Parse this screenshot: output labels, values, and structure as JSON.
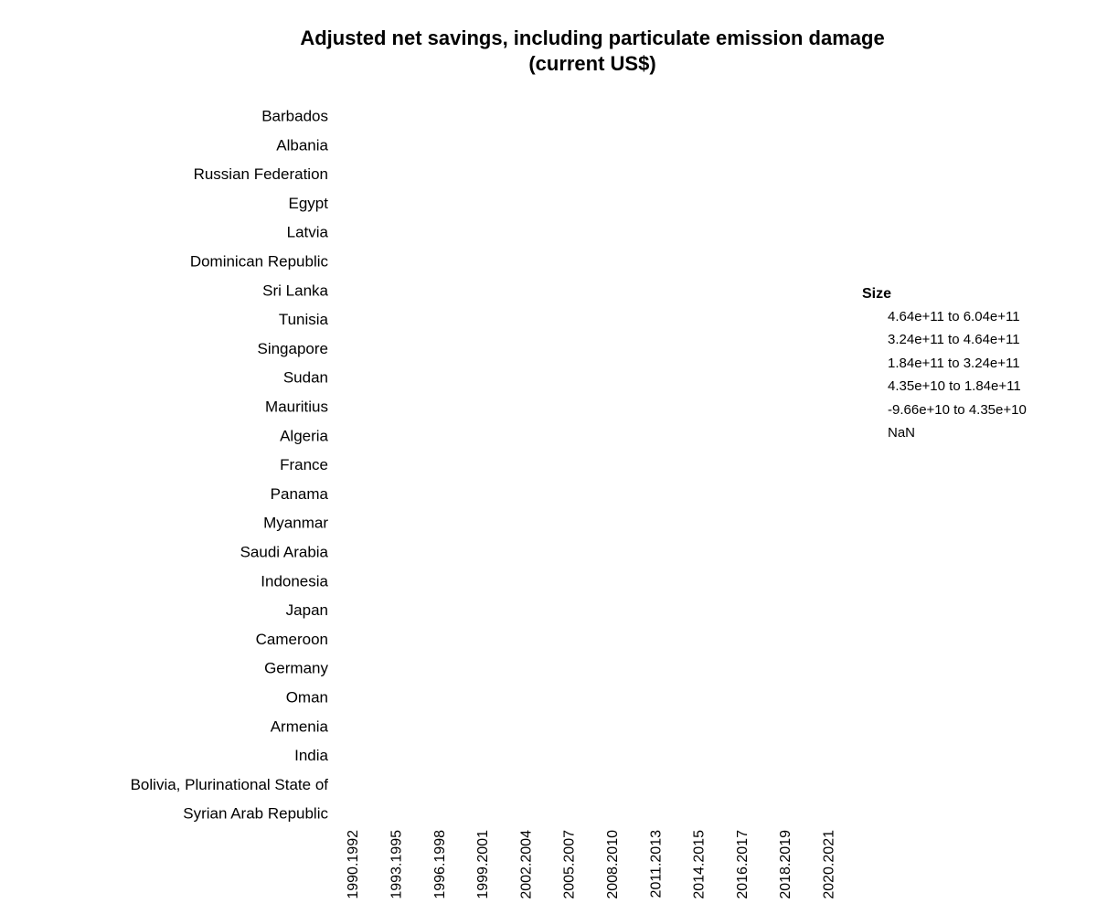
{
  "chart_data": {
    "type": "heatmap",
    "title_lines": [
      "Adjusted net savings, including particulate emission damage",
      "(current US$)"
    ],
    "y_categories": [
      "Barbados",
      "Albania",
      "Russian Federation",
      "Egypt",
      "Latvia",
      "Dominican Republic",
      "Sri Lanka",
      "Tunisia",
      "Singapore",
      "Sudan",
      "Mauritius",
      "Algeria",
      "France",
      "Panama",
      "Myanmar",
      "Saudi Arabia",
      "Indonesia",
      "Japan",
      "Cameroon",
      "Germany",
      "Oman",
      "Armenia",
      "India",
      "Bolivia, Plurinational State of",
      "Syrian Arab Republic"
    ],
    "x_categories": [
      "1990.1992",
      "1993.1995",
      "1996.1998",
      "1999.2001",
      "2002.2004",
      "2005.2007",
      "2008.2010",
      "2011.2013",
      "2014.2015",
      "2016.2017",
      "2018.2019",
      "2020.2021"
    ],
    "legend": {
      "title": "Size",
      "placement": "right",
      "bins": [
        "4.64e+11 to 6.04e+11",
        "3.24e+11 to 4.64e+11",
        "1.84e+11 to 3.24e+11",
        "4.35e+10 to 1.84e+11",
        "-9.66e+10 to 4.35e+10",
        "NaN"
      ]
    },
    "values": [],
    "grid": false
  }
}
